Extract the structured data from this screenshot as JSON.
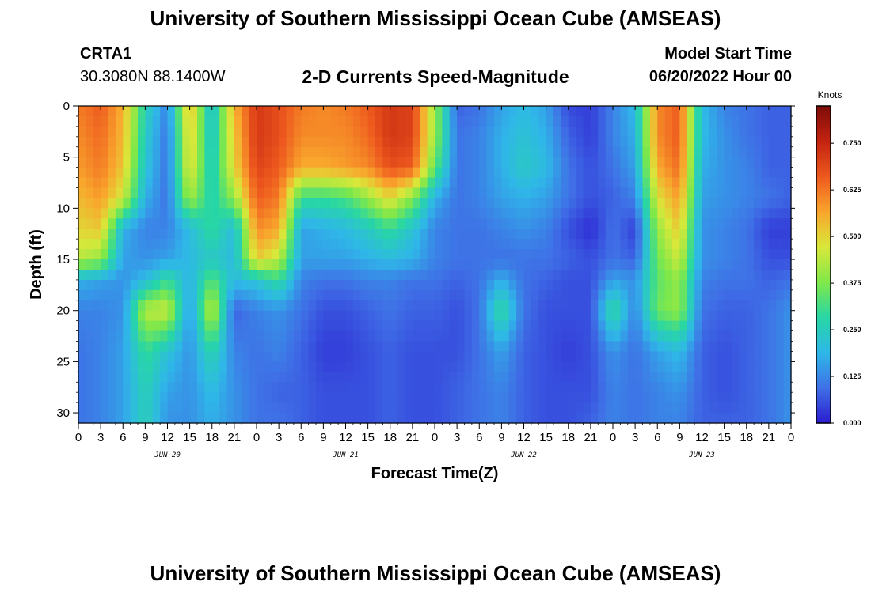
{
  "header": {
    "title_top": "University of Southern Mississippi Ocean Cube (AMSEAS)",
    "station_id": "CRTA1",
    "station_coords": "30.3080N  88.1400W",
    "subtitle": "2-D Currents Speed-Magnitude",
    "model_start_label": "Model Start Time",
    "model_start_value": "06/20/2022 Hour 00",
    "title_bottom": "University of Southern Mississippi Ocean Cube (AMSEAS)"
  },
  "chart_data": {
    "type": "heatmap",
    "title": "2-D Currents Speed-Magnitude",
    "xlabel": "Forecast Time(Z)",
    "ylabel": "Depth (ft)",
    "x_tick_labels": [
      "0",
      "3",
      "6",
      "9",
      "12",
      "15",
      "18",
      "21",
      "0",
      "3",
      "6",
      "9",
      "12",
      "15",
      "18",
      "21",
      "0",
      "3",
      "6",
      "9",
      "12",
      "15",
      "18",
      "21",
      "0",
      "3",
      "6",
      "9",
      "12",
      "15",
      "18",
      "21",
      "0"
    ],
    "day_labels": [
      "JUN 20",
      "JUN 21",
      "JUN 22",
      "JUN 23"
    ],
    "x_range_hours": [
      0,
      96
    ],
    "y_ticks": [
      0,
      5,
      10,
      15,
      20,
      25,
      30
    ],
    "ylim": [
      0,
      31
    ],
    "y_inverted": true,
    "colorbar": {
      "unit_label": "Knots",
      "ticks": [
        "0.000",
        "0.125",
        "0.250",
        "0.375",
        "0.500",
        "0.625",
        "0.750"
      ],
      "range": [
        0,
        0.85
      ],
      "colors": [
        "#2b1bd0",
        "#3f6fe6",
        "#2fb7e8",
        "#27d6a6",
        "#7fe84a",
        "#d8e83a",
        "#f9a62d",
        "#ee5a1e",
        "#c42310",
        "#7e0d08"
      ]
    },
    "depths_ft": [
      0,
      3,
      6,
      9,
      12,
      15,
      17,
      20,
      24,
      28,
      31
    ],
    "hours": [
      0,
      3,
      6,
      9,
      12,
      15,
      18,
      21,
      24,
      27,
      30,
      33,
      36,
      39,
      42,
      45,
      48,
      51,
      54,
      57,
      60,
      63,
      66,
      69,
      72,
      75,
      78,
      81,
      84,
      87,
      90,
      93,
      96
    ],
    "speed_knots": [
      [
        0.62,
        0.66,
        0.55,
        0.26,
        0.12,
        0.55,
        0.2,
        0.55,
        0.72,
        0.68,
        0.62,
        0.6,
        0.62,
        0.66,
        0.72,
        0.7,
        0.4,
        0.08,
        0.1,
        0.16,
        0.2,
        0.16,
        0.05,
        0.04,
        0.12,
        0.2,
        0.6,
        0.66,
        0.2,
        0.12,
        0.1,
        0.08,
        0.08
      ],
      [
        0.6,
        0.64,
        0.54,
        0.24,
        0.1,
        0.52,
        0.22,
        0.52,
        0.72,
        0.68,
        0.6,
        0.6,
        0.6,
        0.64,
        0.72,
        0.7,
        0.4,
        0.1,
        0.12,
        0.18,
        0.22,
        0.18,
        0.08,
        0.04,
        0.12,
        0.18,
        0.6,
        0.66,
        0.2,
        0.14,
        0.1,
        0.08,
        0.08
      ],
      [
        0.58,
        0.62,
        0.52,
        0.22,
        0.1,
        0.5,
        0.24,
        0.5,
        0.7,
        0.66,
        0.56,
        0.56,
        0.58,
        0.6,
        0.68,
        0.66,
        0.34,
        0.1,
        0.12,
        0.18,
        0.24,
        0.2,
        0.1,
        0.06,
        0.1,
        0.16,
        0.56,
        0.64,
        0.18,
        0.14,
        0.12,
        0.08,
        0.08
      ],
      [
        0.54,
        0.58,
        0.46,
        0.18,
        0.1,
        0.42,
        0.26,
        0.4,
        0.66,
        0.62,
        0.3,
        0.3,
        0.32,
        0.4,
        0.5,
        0.38,
        0.18,
        0.1,
        0.12,
        0.16,
        0.18,
        0.16,
        0.1,
        0.06,
        0.08,
        0.12,
        0.48,
        0.58,
        0.16,
        0.14,
        0.12,
        0.1,
        0.08
      ],
      [
        0.5,
        0.52,
        0.18,
        0.12,
        0.12,
        0.2,
        0.3,
        0.2,
        0.6,
        0.56,
        0.16,
        0.18,
        0.2,
        0.24,
        0.3,
        0.22,
        0.12,
        0.1,
        0.1,
        0.12,
        0.14,
        0.12,
        0.06,
        0.02,
        0.1,
        0.04,
        0.4,
        0.52,
        0.14,
        0.12,
        0.1,
        0.04,
        0.04
      ],
      [
        0.44,
        0.4,
        0.16,
        0.14,
        0.16,
        0.2,
        0.24,
        0.2,
        0.52,
        0.44,
        0.16,
        0.16,
        0.16,
        0.18,
        0.2,
        0.18,
        0.12,
        0.1,
        0.1,
        0.1,
        0.1,
        0.1,
        0.08,
        0.06,
        0.1,
        0.08,
        0.36,
        0.46,
        0.14,
        0.12,
        0.1,
        0.06,
        0.06
      ],
      [
        0.18,
        0.16,
        0.14,
        0.2,
        0.3,
        0.18,
        0.34,
        0.2,
        0.22,
        0.3,
        0.12,
        0.1,
        0.1,
        0.12,
        0.12,
        0.1,
        0.1,
        0.08,
        0.1,
        0.18,
        0.1,
        0.08,
        0.06,
        0.06,
        0.16,
        0.14,
        0.34,
        0.4,
        0.12,
        0.1,
        0.1,
        0.08,
        0.1
      ],
      [
        0.12,
        0.12,
        0.14,
        0.44,
        0.46,
        0.14,
        0.46,
        0.08,
        0.12,
        0.14,
        0.1,
        0.06,
        0.06,
        0.08,
        0.1,
        0.08,
        0.08,
        0.06,
        0.1,
        0.3,
        0.1,
        0.06,
        0.06,
        0.06,
        0.3,
        0.12,
        0.36,
        0.4,
        0.1,
        0.08,
        0.08,
        0.1,
        0.14
      ],
      [
        0.1,
        0.12,
        0.16,
        0.3,
        0.22,
        0.14,
        0.28,
        0.12,
        0.1,
        0.12,
        0.08,
        0.04,
        0.04,
        0.06,
        0.08,
        0.06,
        0.06,
        0.06,
        0.1,
        0.16,
        0.08,
        0.06,
        0.04,
        0.06,
        0.14,
        0.1,
        0.16,
        0.2,
        0.08,
        0.06,
        0.08,
        0.1,
        0.14
      ],
      [
        0.1,
        0.12,
        0.16,
        0.26,
        0.16,
        0.14,
        0.2,
        0.14,
        0.1,
        0.08,
        0.08,
        0.06,
        0.06,
        0.06,
        0.08,
        0.06,
        0.06,
        0.08,
        0.1,
        0.12,
        0.08,
        0.06,
        0.06,
        0.06,
        0.12,
        0.1,
        0.12,
        0.14,
        0.08,
        0.06,
        0.08,
        0.1,
        0.14
      ],
      [
        0.1,
        0.12,
        0.16,
        0.26,
        0.14,
        0.14,
        0.18,
        0.14,
        0.1,
        0.1,
        0.08,
        0.06,
        0.06,
        0.06,
        0.08,
        0.06,
        0.06,
        0.08,
        0.1,
        0.12,
        0.08,
        0.06,
        0.06,
        0.08,
        0.12,
        0.1,
        0.12,
        0.12,
        0.08,
        0.08,
        0.08,
        0.1,
        0.14
      ]
    ]
  }
}
